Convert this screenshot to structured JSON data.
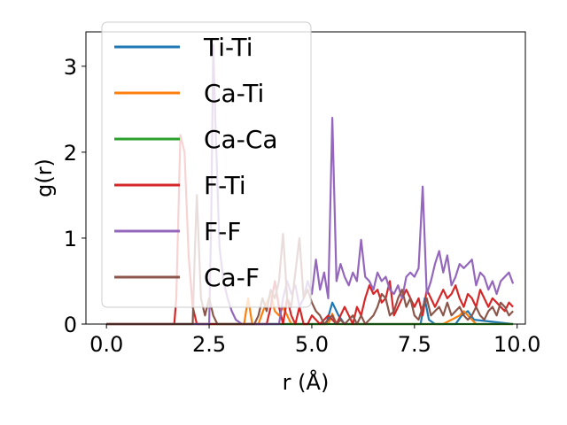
{
  "chart_data": {
    "type": "line",
    "xlabel": "r (Å)",
    "ylabel": "g(r)",
    "xlim": [
      -0.5,
      10.2
    ],
    "ylim": [
      0,
      3.4
    ],
    "xticks": [
      0.0,
      2.5,
      5.0,
      7.5,
      10.0
    ],
    "xtick_labels": [
      "0.0",
      "2.5",
      "5.0",
      "7.5",
      "10.0"
    ],
    "yticks": [
      0,
      1,
      2,
      3
    ],
    "ytick_labels": [
      "0",
      "1",
      "2",
      "3"
    ],
    "grid": false,
    "legend_position": "upper-left",
    "series": [
      {
        "name": "Ti-Ti",
        "color": "#1f77b4",
        "x": [
          0.0,
          5.2,
          5.35,
          5.5,
          5.65,
          5.8,
          7.5,
          7.65,
          7.75,
          7.85,
          8.0,
          8.5,
          8.65,
          8.8,
          8.95,
          9.9
        ],
        "y": [
          0.0,
          0.0,
          0.0,
          0.25,
          0.1,
          0.0,
          0.0,
          0.0,
          0.3,
          0.05,
          0.0,
          0.0,
          0.1,
          0.15,
          0.05,
          0.0
        ]
      },
      {
        "name": "Ca-Ti",
        "color": "#ff7f0e",
        "x": [
          0.0,
          3.35,
          3.45,
          3.55,
          3.7,
          3.85,
          4.0,
          4.1,
          4.2,
          4.3,
          4.5,
          5.4,
          5.5,
          5.6,
          5.7,
          8.2,
          8.4,
          8.6,
          8.7,
          8.8,
          9.0,
          9.9
        ],
        "y": [
          0.0,
          0.0,
          0.3,
          0.0,
          0.0,
          0.2,
          0.35,
          0.15,
          0.1,
          0.2,
          0.0,
          0.0,
          0.12,
          0.0,
          0.0,
          0.0,
          0.05,
          0.1,
          0.15,
          0.1,
          0.0,
          0.0
        ]
      },
      {
        "name": "Ca-Ca",
        "color": "#2ca02c",
        "x": [
          0.0,
          9.9
        ],
        "y": [
          0.0,
          0.0
        ]
      },
      {
        "name": "F-Ti",
        "color": "#d62728",
        "x": [
          0.0,
          1.65,
          1.7,
          1.8,
          1.9,
          2.0,
          2.1,
          2.2,
          2.3,
          2.4,
          3.9,
          4.0,
          4.1,
          4.2,
          4.3,
          4.4,
          4.5,
          4.6,
          4.7,
          4.8,
          4.9,
          5.0,
          5.2,
          5.4,
          5.6,
          5.7,
          5.8,
          5.9,
          6.0,
          6.1,
          6.2,
          6.3,
          6.4,
          6.5,
          6.6,
          6.7,
          6.8,
          6.9,
          7.0,
          7.1,
          7.2,
          7.3,
          7.4,
          7.5,
          7.6,
          7.7,
          7.8,
          7.9,
          8.0,
          8.1,
          8.2,
          8.3,
          8.4,
          8.5,
          8.6,
          8.7,
          8.8,
          8.9,
          9.0,
          9.1,
          9.2,
          9.3,
          9.4,
          9.5,
          9.6,
          9.7,
          9.8,
          9.9
        ],
        "y": [
          0.0,
          0.0,
          0.3,
          2.2,
          2.0,
          0.8,
          0.2,
          0.0,
          0.0,
          0.0,
          0.0,
          0.2,
          0.5,
          0.2,
          0.0,
          0.3,
          0.1,
          0.0,
          0.2,
          0.0,
          0.0,
          0.1,
          0.0,
          0.1,
          0.0,
          0.1,
          0.2,
          0.1,
          0.0,
          0.2,
          0.1,
          0.3,
          0.45,
          0.35,
          0.4,
          0.25,
          0.3,
          0.5,
          0.1,
          0.2,
          0.3,
          0.4,
          0.3,
          0.2,
          0.3,
          0.1,
          0.4,
          0.3,
          0.2,
          0.3,
          0.4,
          0.3,
          0.35,
          0.45,
          0.3,
          0.2,
          0.35,
          0.3,
          0.2,
          0.4,
          0.3,
          0.2,
          0.3,
          0.25,
          0.2,
          0.15,
          0.25,
          0.2
        ]
      },
      {
        "name": "F-F",
        "color": "#9467bd",
        "x": [
          0.0,
          2.5,
          2.55,
          2.6,
          2.65,
          2.75,
          2.85,
          2.95,
          3.05,
          3.15,
          3.3,
          4.2,
          4.3,
          4.4,
          4.5,
          4.6,
          4.7,
          4.8,
          4.9,
          5.0,
          5.1,
          5.2,
          5.3,
          5.4,
          5.5,
          5.6,
          5.7,
          5.8,
          5.9,
          6.0,
          6.1,
          6.2,
          6.3,
          6.4,
          6.5,
          6.6,
          6.7,
          6.8,
          6.9,
          7.0,
          7.1,
          7.2,
          7.3,
          7.4,
          7.5,
          7.6,
          7.7,
          7.8,
          7.9,
          8.0,
          8.1,
          8.2,
          8.3,
          8.4,
          8.5,
          8.6,
          8.7,
          8.8,
          8.9,
          9.0,
          9.1,
          9.2,
          9.3,
          9.4,
          9.5,
          9.6,
          9.7,
          9.8,
          9.9
        ],
        "y": [
          0.0,
          0.0,
          1.2,
          3.25,
          2.4,
          0.9,
          0.5,
          0.3,
          0.15,
          0.05,
          0.0,
          0.0,
          0.3,
          0.5,
          0.35,
          0.45,
          0.2,
          0.3,
          0.5,
          0.35,
          0.75,
          0.4,
          0.6,
          0.3,
          2.4,
          0.5,
          0.7,
          0.55,
          0.45,
          0.6,
          0.5,
          0.98,
          0.55,
          0.5,
          0.4,
          0.6,
          0.5,
          0.55,
          0.4,
          0.35,
          0.45,
          0.3,
          0.55,
          0.6,
          0.55,
          0.65,
          1.6,
          0.35,
          0.5,
          0.7,
          0.85,
          0.6,
          0.8,
          0.45,
          0.55,
          0.7,
          0.65,
          0.7,
          0.75,
          0.45,
          0.6,
          0.55,
          0.4,
          0.5,
          0.35,
          0.5,
          0.55,
          0.6,
          0.47
        ]
      },
      {
        "name": "Ca-F",
        "color": "#8c564b",
        "x": [
          0.0,
          2.1,
          2.15,
          2.2,
          2.25,
          2.3,
          2.4,
          2.5,
          2.6,
          2.7,
          2.8,
          3.6,
          3.7,
          3.8,
          3.9,
          4.0,
          4.1,
          4.2,
          4.3,
          4.4,
          4.5,
          4.6,
          4.7,
          4.8,
          4.9,
          5.0,
          5.1,
          5.2,
          5.3,
          5.4,
          5.5,
          5.6,
          5.7,
          5.8,
          5.9,
          6.0,
          6.1,
          6.2,
          6.3,
          6.4,
          6.5,
          6.6,
          6.7,
          6.8,
          6.9,
          7.0,
          7.1,
          7.2,
          7.3,
          7.4,
          7.5,
          7.6,
          7.7,
          7.8,
          7.9,
          8.0,
          8.1,
          8.2,
          8.3,
          8.4,
          8.5,
          8.6,
          8.7,
          8.8,
          8.9,
          9.0,
          9.1,
          9.2,
          9.3,
          9.4,
          9.5,
          9.6,
          9.7,
          9.8,
          9.9
        ],
        "y": [
          0.0,
          0.0,
          0.8,
          1.5,
          0.9,
          0.3,
          0.1,
          0.3,
          0.1,
          0.0,
          0.0,
          0.0,
          0.1,
          0.3,
          0.15,
          0.4,
          0.3,
          0.5,
          1.05,
          0.3,
          0.2,
          0.6,
          1.0,
          0.3,
          0.4,
          0.25,
          0.15,
          0.1,
          0.0,
          0.05,
          0.1,
          0.0,
          0.05,
          0.0,
          0.05,
          0.1,
          0.0,
          0.1,
          0.0,
          0.05,
          0.1,
          0.2,
          0.35,
          0.3,
          0.1,
          0.15,
          0.3,
          0.4,
          0.2,
          0.3,
          0.1,
          0.05,
          0.2,
          0.3,
          0.1,
          0.15,
          0.2,
          0.1,
          0.25,
          0.1,
          0.15,
          0.2,
          0.1,
          0.05,
          0.1,
          0.2,
          0.1,
          0.05,
          0.15,
          0.2,
          0.1,
          0.25,
          0.2,
          0.1,
          0.15
        ]
      }
    ]
  }
}
